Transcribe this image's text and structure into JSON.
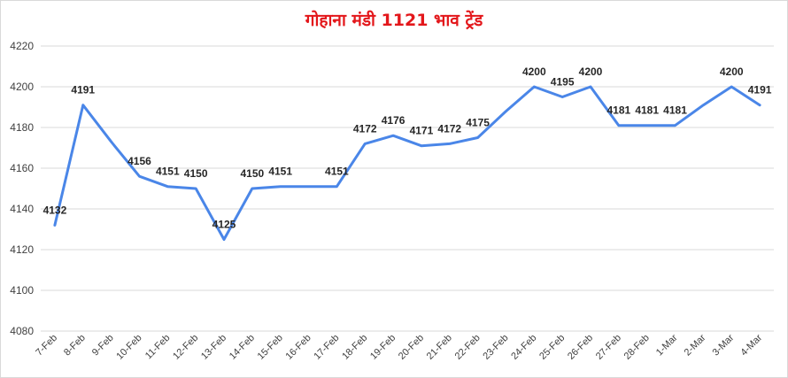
{
  "chart_data": {
    "type": "line",
    "title": "गोहाना मंडी 1121 भाव ट्रेंड",
    "xlabel": "",
    "ylabel": "",
    "ylim": [
      4080,
      4220
    ],
    "yticks": [
      4080,
      4100,
      4120,
      4140,
      4160,
      4180,
      4200,
      4220
    ],
    "grid": true,
    "legend": "none",
    "line_color": "#4a86e8",
    "title_color": "#e3171b",
    "categories": [
      "7-Feb",
      "8-Feb",
      "9-Feb",
      "10-Feb",
      "11-Feb",
      "12-Feb",
      "13-Feb",
      "14-Feb",
      "15-Feb",
      "16-Feb",
      "17-Feb",
      "18-Feb",
      "19-Feb",
      "20-Feb",
      "21-Feb",
      "22-Feb",
      "23-Feb",
      "24-Feb",
      "25-Feb",
      "26-Feb",
      "27-Feb",
      "28-Feb",
      "1-Mar",
      "2-Mar",
      "3-Mar",
      "4-Mar"
    ],
    "values": [
      4132,
      4191,
      4173,
      4156,
      4151,
      4150,
      4125,
      4150,
      4151,
      4151,
      4151,
      4172,
      4176,
      4171,
      4172,
      4175,
      4188,
      4200,
      4195,
      4200,
      4181,
      4181,
      4181,
      4191,
      4200,
      4191
    ],
    "data_labels": [
      "4132",
      "4191",
      null,
      "4156",
      "4151",
      "4150",
      "4125",
      "4150",
      "4151",
      null,
      "4151",
      "4172",
      "4176",
      "4171",
      "4172",
      "4175",
      null,
      "4200",
      "4195",
      "4200",
      "4181",
      "4181",
      "4181",
      null,
      "4200",
      "4191"
    ]
  }
}
